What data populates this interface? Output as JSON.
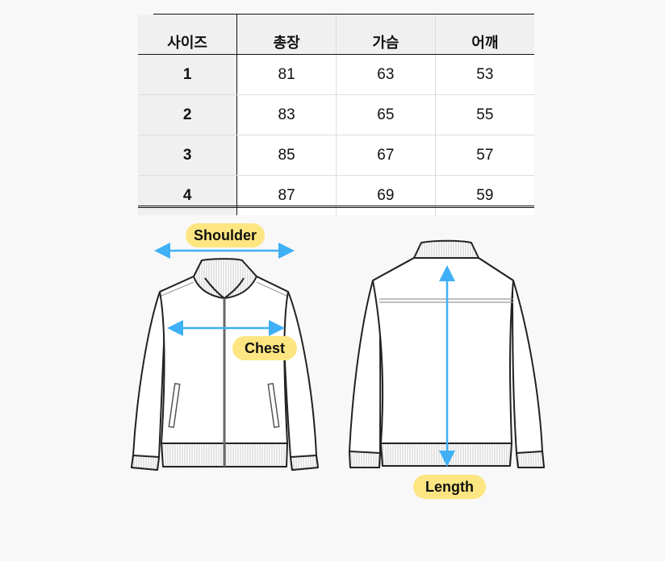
{
  "size_table": {
    "headers": [
      "사이즈",
      "총장",
      "가슴",
      "어깨"
    ],
    "rows": [
      {
        "size": "1",
        "length": "81",
        "chest": "63",
        "shoulder": "53"
      },
      {
        "size": "2",
        "length": "83",
        "chest": "65",
        "shoulder": "55"
      },
      {
        "size": "3",
        "length": "85",
        "chest": "67",
        "shoulder": "57"
      },
      {
        "size": "4",
        "length": "87",
        "chest": "69",
        "shoulder": "59"
      }
    ]
  },
  "diagram": {
    "labels": {
      "shoulder": "Shoulder",
      "chest": "Chest",
      "length": "Length"
    },
    "colors": {
      "arrow": "#3fb0f5",
      "label_bg": "#fde681",
      "outline": "#222222"
    }
  }
}
